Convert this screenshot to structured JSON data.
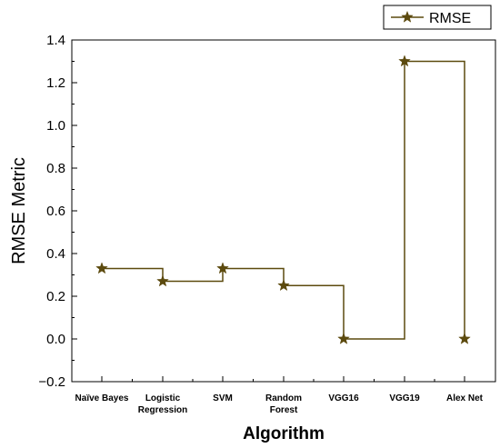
{
  "chart_data": {
    "type": "line",
    "line_style": "step",
    "xlabel": "Algorithm",
    "ylabel": "RMSE Metric",
    "categories": [
      [
        "Naïve Bayes"
      ],
      [
        "Logistic",
        "Regression"
      ],
      [
        "SVM"
      ],
      [
        "Random",
        "Forest"
      ],
      [
        "VGG16"
      ],
      [
        "VGG19"
      ],
      [
        "Alex Net"
      ]
    ],
    "series": [
      {
        "name": "RMSE",
        "values": [
          0.33,
          0.27,
          0.33,
          0.25,
          0.0,
          1.3,
          0.0
        ],
        "color": "#5c4a0e",
        "marker": "star"
      }
    ],
    "ylim": [
      -0.2,
      1.4
    ],
    "yticks": [
      "−0.2",
      "0.0",
      "0.2",
      "0.4",
      "0.6",
      "0.8",
      "1.0",
      "1.2",
      "1.4"
    ],
    "ytick_values": [
      -0.2,
      0.0,
      0.2,
      0.4,
      0.6,
      0.8,
      1.0,
      1.2,
      1.4
    ],
    "legend_position": "top-right",
    "grid": false
  }
}
